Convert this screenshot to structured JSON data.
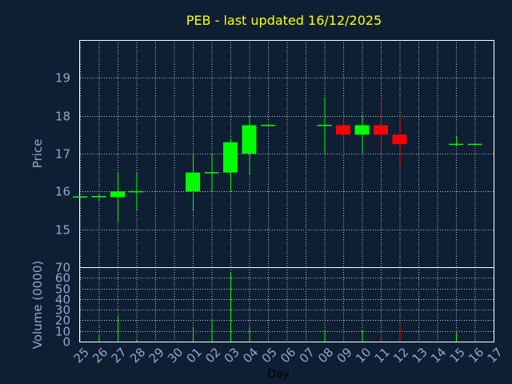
{
  "chart_data": {
    "type": "candlestick",
    "title": "PEB - last updated 16/12/2025",
    "xlabel": "Day",
    "ylabel_price": "Price",
    "ylabel_volume": "Volume (0000)",
    "x_ticks": [
      "25",
      "26",
      "27",
      "28",
      "29",
      "30",
      "01",
      "02",
      "03",
      "04",
      "05",
      "06",
      "07",
      "08",
      "09",
      "10",
      "11",
      "12",
      "13",
      "14",
      "15",
      "16",
      "17"
    ],
    "price_ylim": [
      14,
      20
    ],
    "price_ticks": [
      15,
      16,
      17,
      18,
      19
    ],
    "volume_ylim": [
      0,
      70
    ],
    "volume_ticks": [
      0,
      10,
      20,
      30,
      40,
      50,
      60,
      70
    ],
    "grid": true,
    "up_color": "#00ff00",
    "down_color": "#ff0000",
    "candles": [
      {
        "day": "25",
        "open": 15.85,
        "close": 15.87,
        "high": 15.88,
        "low": 15.84,
        "volume": 0.5
      },
      {
        "day": "26",
        "open": 15.86,
        "close": 15.88,
        "high": 15.95,
        "low": 15.75,
        "volume": 7
      },
      {
        "day": "27",
        "open": 15.85,
        "close": 16.0,
        "high": 16.5,
        "low": 15.2,
        "volume": 25
      },
      {
        "day": "28",
        "open": 15.99,
        "close": 16.01,
        "high": 16.5,
        "low": 15.5,
        "volume": 2
      },
      {
        "day": "01",
        "open": 16.0,
        "close": 16.5,
        "high": 17.0,
        "low": 15.5,
        "volume": 13
      },
      {
        "day": "02",
        "open": 16.49,
        "close": 16.51,
        "high": 17.0,
        "low": 16.0,
        "volume": 21
      },
      {
        "day": "03",
        "open": 16.5,
        "close": 17.3,
        "high": 17.4,
        "low": 16.0,
        "volume": 65
      },
      {
        "day": "04",
        "open": 17.0,
        "close": 17.75,
        "high": 18.0,
        "low": 16.45,
        "volume": 14
      },
      {
        "day": "05",
        "open": 17.74,
        "close": 17.76,
        "high": 17.77,
        "low": 17.73,
        "volume": 0.5
      },
      {
        "day": "08",
        "open": 17.74,
        "close": 17.76,
        "high": 18.5,
        "low": 17.0,
        "volume": 11
      },
      {
        "day": "09",
        "open": 17.75,
        "close": 17.5,
        "high": 18.0,
        "low": 17.0,
        "volume": 7
      },
      {
        "day": "10",
        "open": 17.5,
        "close": 17.75,
        "high": 18.0,
        "low": 17.0,
        "volume": 11
      },
      {
        "day": "11",
        "open": 17.75,
        "close": 17.5,
        "high": 18.5,
        "low": 17.1,
        "volume": 7
      },
      {
        "day": "12",
        "open": 17.5,
        "close": 17.25,
        "high": 18.0,
        "low": 16.6,
        "volume": 17
      },
      {
        "day": "15",
        "open": 17.24,
        "close": 17.26,
        "high": 17.45,
        "low": 17.2,
        "volume": 8
      },
      {
        "day": "16",
        "open": 17.24,
        "close": 17.26,
        "high": 17.27,
        "low": 17.23,
        "volume": 1
      }
    ]
  }
}
